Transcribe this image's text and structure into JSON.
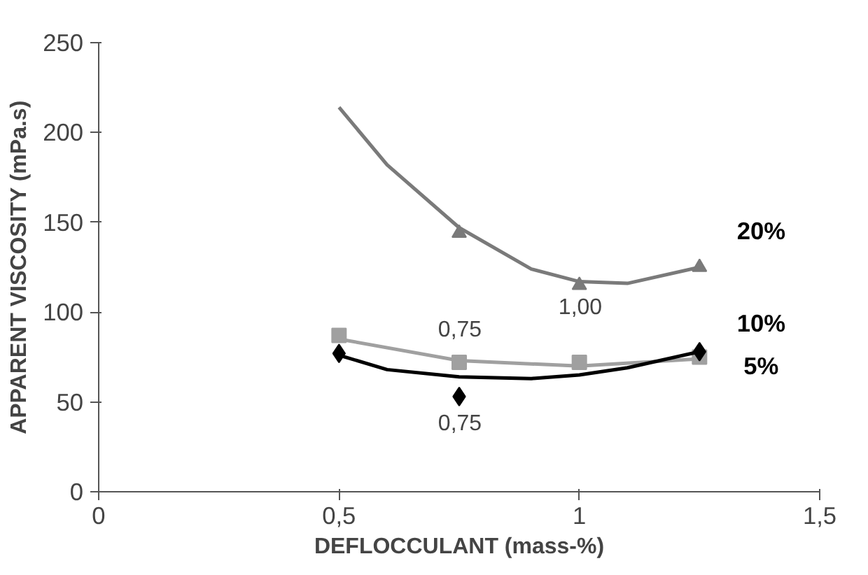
{
  "chart_data": {
    "type": "scatter",
    "xlabel": "DEFLOCCULANT (mass-%)",
    "ylabel": "APPARENT VISCOSITY (mPa.s)",
    "xlim": [
      0,
      1.5
    ],
    "ylim": [
      0,
      250
    ],
    "xticks": [
      {
        "value": 0,
        "label": "0"
      },
      {
        "value": 0.5,
        "label": "0,5"
      },
      {
        "value": 1,
        "label": "1"
      },
      {
        "value": 1.5,
        "label": "1,5"
      }
    ],
    "yticks": [
      0,
      50,
      100,
      150,
      200,
      250
    ],
    "grid": false,
    "series": [
      {
        "type": "line",
        "color": "#7a7a7a",
        "x": [
          0.5,
          0.6,
          0.75,
          0.9,
          1.0,
          1.1,
          1.25
        ],
        "values": [
          214,
          182,
          147,
          124,
          117,
          116,
          125
        ]
      },
      {
        "name": "20%",
        "marker": "triangle",
        "color": "#7a7a7a",
        "x": [
          0.75,
          1.0,
          1.25
        ],
        "values": [
          144,
          115,
          125
        ]
      },
      {
        "type": "line",
        "color": "#a0a0a0",
        "x": [
          0.5,
          0.75,
          1.0,
          1.25
        ],
        "values": [
          85,
          73,
          70,
          74
        ]
      },
      {
        "name": "10%",
        "marker": "square",
        "color": "#a0a0a0",
        "x": [
          0.5,
          0.75,
          1.0,
          1.25
        ],
        "values": [
          87,
          72,
          72,
          75
        ]
      },
      {
        "type": "line",
        "color": "#000000",
        "x": [
          0.5,
          0.6,
          0.75,
          0.9,
          1.0,
          1.1,
          1.25
        ],
        "values": [
          76,
          68,
          64,
          63,
          65,
          69,
          78
        ]
      },
      {
        "name": "5%",
        "marker": "diamond",
        "color": "#000000",
        "x": [
          0.5,
          0.75,
          1.25
        ],
        "values": [
          77,
          53,
          78
        ]
      }
    ],
    "annotations": [
      "0,75",
      "1,00",
      "0,75"
    ]
  }
}
